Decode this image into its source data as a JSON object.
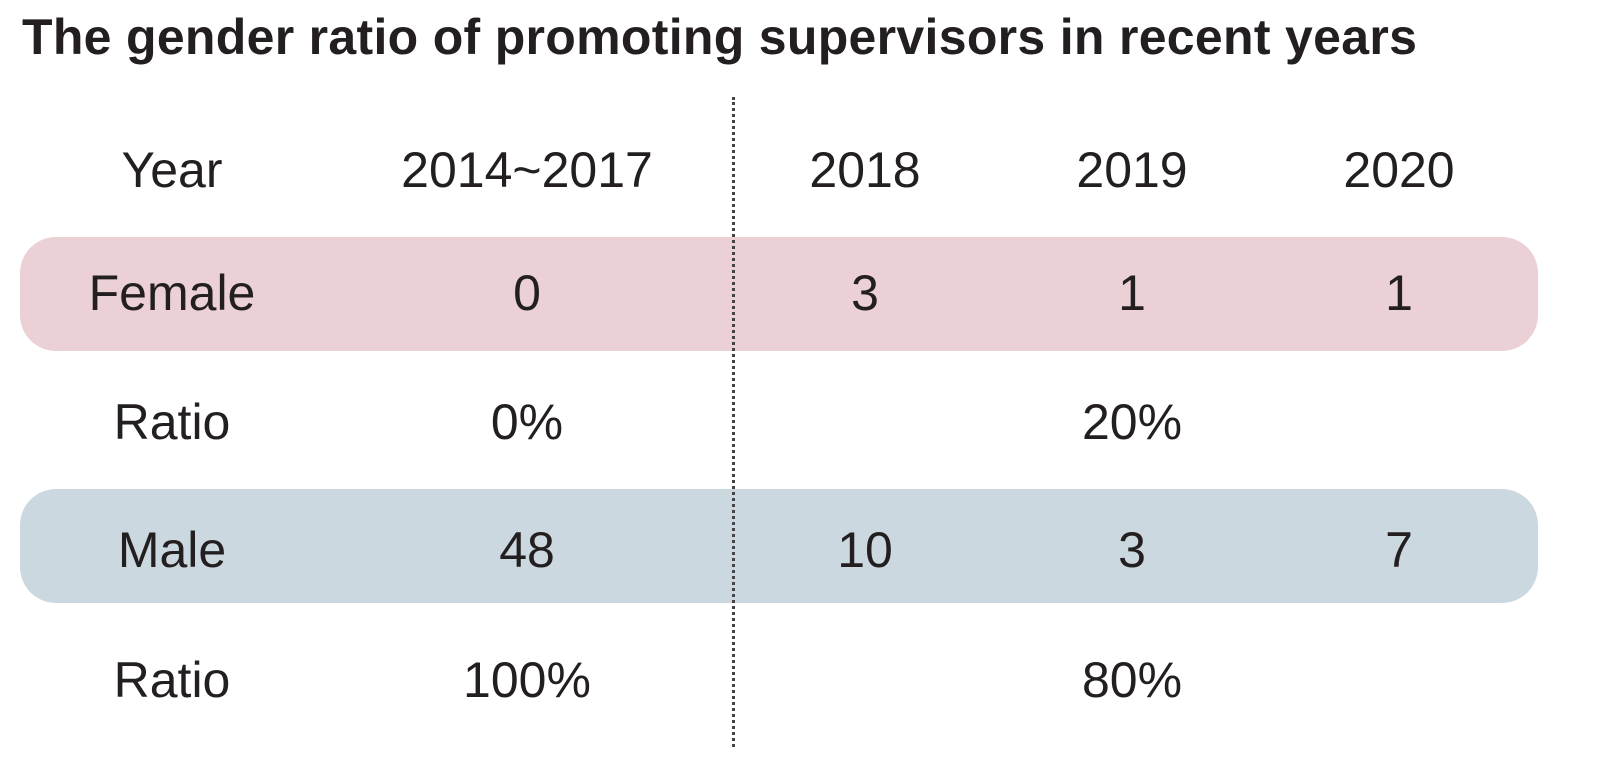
{
  "chart_data": {
    "type": "table",
    "title": "The gender ratio of promoting supervisors in recent years",
    "columns": [
      "Year",
      "2014~2017",
      "2018",
      "2019",
      "2020"
    ],
    "rows": [
      {
        "label": "Female",
        "values": [
          "0",
          "3",
          "1",
          "1"
        ],
        "highlight": "#ebd0d5"
      },
      {
        "label": "Ratio",
        "values": [
          "0%",
          "20%"
        ],
        "spans": [
          "2014~2017",
          "2018~2020"
        ]
      },
      {
        "label": "Male",
        "values": [
          "48",
          "10",
          "3",
          "7"
        ],
        "highlight": "#cbd8df"
      },
      {
        "label": "Ratio",
        "values": [
          "100%",
          "80%"
        ],
        "spans": [
          "2014~2017",
          "2018~2020"
        ]
      }
    ]
  },
  "colors": {
    "female_band": "#ebd0d5",
    "male_band": "#cbd8df",
    "text": "#231f20"
  }
}
